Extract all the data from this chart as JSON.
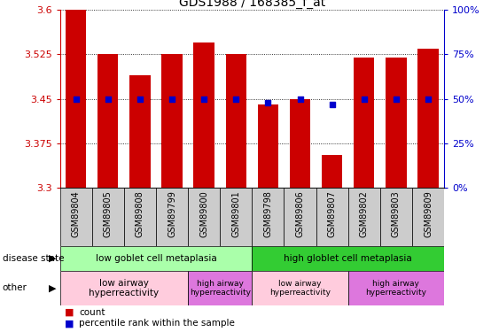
{
  "title": "GDS1988 / 168385_f_at",
  "samples": [
    "GSM89804",
    "GSM89805",
    "GSM89808",
    "GSM89799",
    "GSM89800",
    "GSM89801",
    "GSM89798",
    "GSM89806",
    "GSM89807",
    "GSM89802",
    "GSM89803",
    "GSM89809"
  ],
  "bar_values": [
    3.6,
    3.525,
    3.49,
    3.525,
    3.545,
    3.525,
    3.44,
    3.45,
    3.355,
    3.52,
    3.52,
    3.535
  ],
  "percentile_values": [
    50,
    50,
    50,
    50,
    50,
    50,
    48,
    50,
    47,
    50,
    50,
    50
  ],
  "bar_color": "#cc0000",
  "percentile_color": "#0000cc",
  "y_min": 3.3,
  "y_max": 3.6,
  "y_ticks": [
    3.3,
    3.375,
    3.45,
    3.525,
    3.6
  ],
  "y2_ticks": [
    0,
    25,
    50,
    75,
    100
  ],
  "y2_tick_labels": [
    "0%",
    "25%",
    "50%",
    "75%",
    "100%"
  ],
  "disease_state_groups": [
    {
      "label": "low goblet cell metaplasia",
      "start": 0,
      "end": 6,
      "color": "#aaffaa"
    },
    {
      "label": "high globlet cell metaplasia",
      "start": 6,
      "end": 12,
      "color": "#33cc33"
    }
  ],
  "other_groups": [
    {
      "label": "low airway\nhyperreactivity",
      "start": 0,
      "end": 4,
      "color": "#ffccdd"
    },
    {
      "label": "high airway\nhyperreactivity",
      "start": 4,
      "end": 6,
      "color": "#dd77dd"
    },
    {
      "label": "low airway\nhyperreactivity",
      "start": 6,
      "end": 9,
      "color": "#ffccdd"
    },
    {
      "label": "high airway\nhyperreactivity",
      "start": 9,
      "end": 12,
      "color": "#dd77dd"
    }
  ],
  "xlabels_bg": "#cccccc",
  "background_color": "#ffffff"
}
